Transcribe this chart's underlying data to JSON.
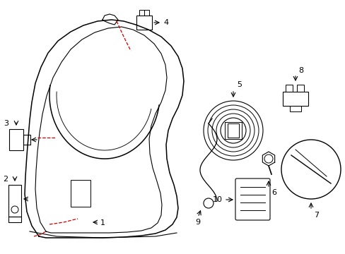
{
  "bg_color": "#ffffff",
  "line_color": "#000000",
  "red_color": "#cc0000",
  "figsize": [
    4.89,
    3.6
  ],
  "dpi": 100
}
